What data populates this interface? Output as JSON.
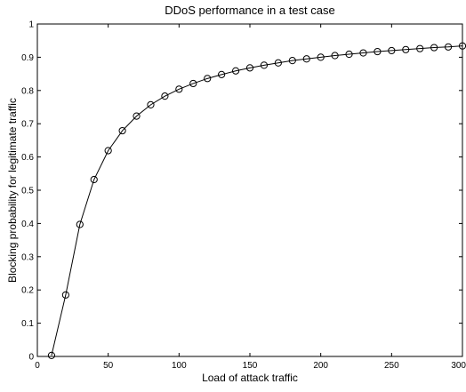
{
  "chart_data": {
    "type": "line",
    "title": "DDoS performance in a test case",
    "xlabel": "Load of attack traffic",
    "ylabel": "Blocking probability for legitimate traffic",
    "xlim": [
      0,
      300
    ],
    "ylim": [
      0,
      1
    ],
    "x_ticks": [
      0,
      50,
      100,
      150,
      200,
      250,
      300
    ],
    "x_tick_labels": [
      "0",
      "50",
      "100",
      "150",
      "200",
      "250",
      "300"
    ],
    "y_ticks": [
      0,
      0.1,
      0.2,
      0.3,
      0.4,
      0.5,
      0.6,
      0.7,
      0.8,
      0.9,
      1
    ],
    "y_tick_labels": [
      "0",
      "0.1",
      "0.2",
      "0.3",
      "0.4",
      "0.5",
      "0.6",
      "0.7",
      "0.8",
      "0.9",
      "1"
    ],
    "grid": false,
    "legend": "none",
    "marker": "circle",
    "line_color": "#000000",
    "series": [
      {
        "x": [
          10,
          20,
          30,
          40,
          50,
          60,
          70,
          80,
          90,
          100,
          110,
          120,
          130,
          140,
          150,
          160,
          170,
          180,
          190,
          200,
          210,
          220,
          230,
          240,
          250,
          260,
          270,
          280,
          290,
          300
        ],
        "values": [
          0.003,
          0.185,
          0.397,
          0.532,
          0.619,
          0.679,
          0.723,
          0.757,
          0.783,
          0.804,
          0.821,
          0.836,
          0.848,
          0.859,
          0.868,
          0.876,
          0.883,
          0.89,
          0.895,
          0.9,
          0.905,
          0.909,
          0.913,
          0.917,
          0.92,
          0.923,
          0.926,
          0.929,
          0.931,
          0.934
        ]
      }
    ]
  }
}
